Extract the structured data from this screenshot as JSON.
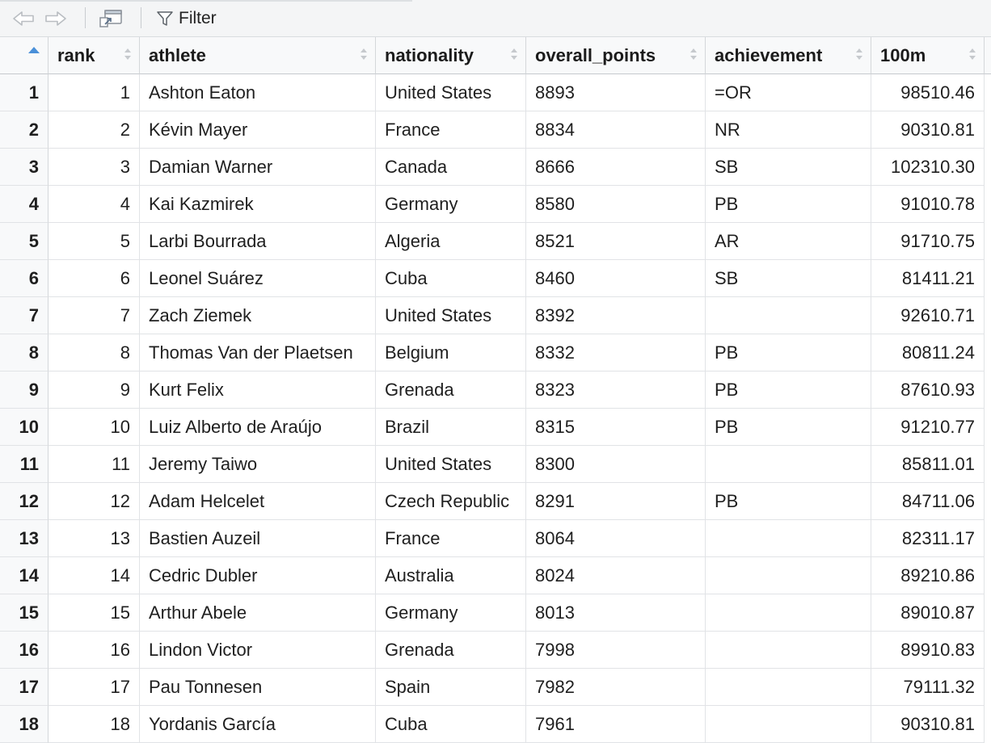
{
  "toolbar": {
    "filter_label": "Filter"
  },
  "columns": [
    {
      "label": "rank"
    },
    {
      "label": "athlete"
    },
    {
      "label": "nationality"
    },
    {
      "label": "overall_points"
    },
    {
      "label": "achievement"
    },
    {
      "label": "100m"
    }
  ],
  "rows": [
    {
      "idx": "1",
      "rank": "1",
      "athlete": "Ashton Eaton",
      "nationality": "United States",
      "overall_points": "8893",
      "achievement": "=OR",
      "m100": "98510.46"
    },
    {
      "idx": "2",
      "rank": "2",
      "athlete": "Kévin Mayer",
      "nationality": "France",
      "overall_points": "8834",
      "achievement": "NR",
      "m100": "90310.81"
    },
    {
      "idx": "3",
      "rank": "3",
      "athlete": "Damian Warner",
      "nationality": "Canada",
      "overall_points": "8666",
      "achievement": "SB",
      "m100": "102310.30"
    },
    {
      "idx": "4",
      "rank": "4",
      "athlete": "Kai Kazmirek",
      "nationality": "Germany",
      "overall_points": "8580",
      "achievement": "PB",
      "m100": "91010.78"
    },
    {
      "idx": "5",
      "rank": "5",
      "athlete": "Larbi Bourrada",
      "nationality": "Algeria",
      "overall_points": "8521",
      "achievement": "AR",
      "m100": "91710.75"
    },
    {
      "idx": "6",
      "rank": "6",
      "athlete": "Leonel Suárez",
      "nationality": "Cuba",
      "overall_points": "8460",
      "achievement": "SB",
      "m100": "81411.21"
    },
    {
      "idx": "7",
      "rank": "7",
      "athlete": "Zach Ziemek",
      "nationality": "United States",
      "overall_points": "8392",
      "achievement": "",
      "m100": "92610.71"
    },
    {
      "idx": "8",
      "rank": "8",
      "athlete": "Thomas Van der Plaetsen",
      "nationality": "Belgium",
      "overall_points": "8332",
      "achievement": "PB",
      "m100": "80811.24"
    },
    {
      "idx": "9",
      "rank": "9",
      "athlete": "Kurt Felix",
      "nationality": "Grenada",
      "overall_points": "8323",
      "achievement": "PB",
      "m100": "87610.93"
    },
    {
      "idx": "10",
      "rank": "10",
      "athlete": "Luiz Alberto de Araújo",
      "nationality": "Brazil",
      "overall_points": "8315",
      "achievement": "PB",
      "m100": "91210.77"
    },
    {
      "idx": "11",
      "rank": "11",
      "athlete": "Jeremy Taiwo",
      "nationality": "United States",
      "overall_points": "8300",
      "achievement": "",
      "m100": "85811.01"
    },
    {
      "idx": "12",
      "rank": "12",
      "athlete": "Adam Helcelet",
      "nationality": "Czech Republic",
      "overall_points": "8291",
      "achievement": "PB",
      "m100": "84711.06"
    },
    {
      "idx": "13",
      "rank": "13",
      "athlete": "Bastien Auzeil",
      "nationality": "France",
      "overall_points": "8064",
      "achievement": "",
      "m100": "82311.17"
    },
    {
      "idx": "14",
      "rank": "14",
      "athlete": "Cedric Dubler",
      "nationality": "Australia",
      "overall_points": "8024",
      "achievement": "",
      "m100": "89210.86"
    },
    {
      "idx": "15",
      "rank": "15",
      "athlete": "Arthur Abele",
      "nationality": "Germany",
      "overall_points": "8013",
      "achievement": "",
      "m100": "89010.87"
    },
    {
      "idx": "16",
      "rank": "16",
      "athlete": "Lindon Victor",
      "nationality": "Grenada",
      "overall_points": "7998",
      "achievement": "",
      "m100": "89910.83"
    },
    {
      "idx": "17",
      "rank": "17",
      "athlete": "Pau Tonnesen",
      "nationality": "Spain",
      "overall_points": "7982",
      "achievement": "",
      "m100": "79111.32"
    },
    {
      "idx": "18",
      "rank": "18",
      "athlete": "Yordanis García",
      "nationality": "Cuba",
      "overall_points": "7961",
      "achievement": "",
      "m100": "90310.81"
    }
  ]
}
